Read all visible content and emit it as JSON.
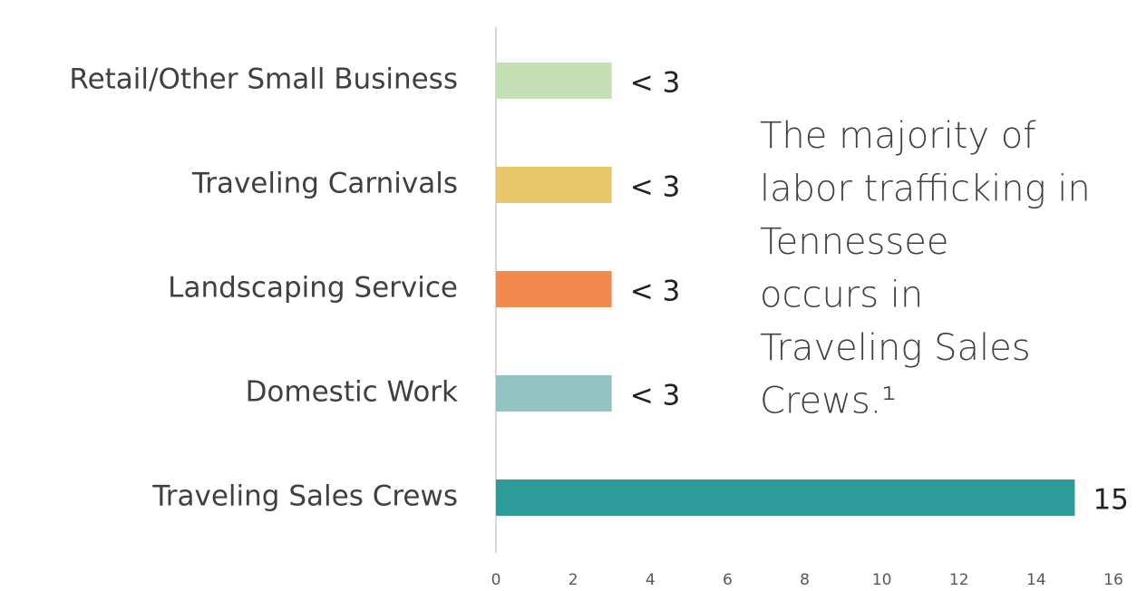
{
  "chart_data": {
    "type": "barh",
    "categories": [
      "Retail/Other Small Business",
      "Traveling Carnivals",
      "Landscaping Service",
      "Domestic Work",
      "Traveling Sales Crews"
    ],
    "values": [
      3,
      3,
      3,
      3,
      15
    ],
    "value_labels": [
      "< 3",
      "< 3",
      "< 3",
      "< 3",
      "15"
    ],
    "colors": [
      "#c5e0b4",
      "#e8c76a",
      "#f4894f",
      "#93c4c4",
      "#2e9b9b"
    ],
    "xlim": [
      0,
      16
    ],
    "xticks": [
      0,
      2,
      4,
      6,
      8,
      10,
      12,
      14,
      16
    ],
    "annotation": [
      "The majority of",
      "labor trafficking in",
      "Tennessee",
      "occurs in",
      "Traveling Sales",
      "Crews.¹"
    ]
  }
}
